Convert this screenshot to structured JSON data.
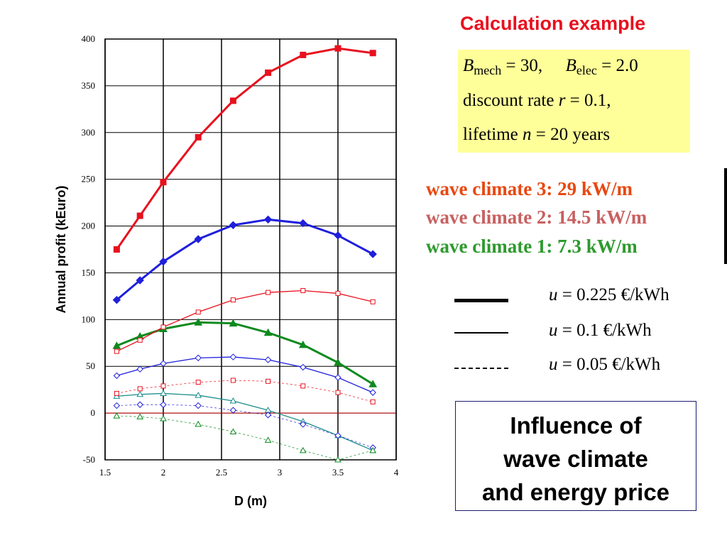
{
  "chart_data": {
    "type": "line",
    "xlabel": "D (m)",
    "ylabel": "Annual profit (kEuro)",
    "xlim": [
      1.5,
      4
    ],
    "ylim": [
      -50,
      400
    ],
    "xticks": [
      "1.5",
      "2",
      "2.5",
      "3",
      "3.5",
      "4"
    ],
    "yticks": [
      "-50",
      "0",
      "50",
      "100",
      "150",
      "200",
      "250",
      "300",
      "350",
      "400"
    ],
    "grid": "on",
    "x": [
      1.6,
      1.8,
      2.0,
      2.3,
      2.6,
      2.9,
      3.2,
      3.5,
      3.8
    ],
    "series": [
      {
        "color": "#e8101e",
        "style": "thick",
        "marker": "square-filled",
        "values": [
          175,
          211,
          247,
          295,
          334,
          364,
          383,
          390,
          385
        ]
      },
      {
        "color": "#1f1fdc",
        "style": "thick",
        "marker": "diamond-filled",
        "values": [
          121,
          142,
          162,
          186,
          201,
          207,
          203,
          190,
          170
        ]
      },
      {
        "color": "#0e8a1e",
        "style": "thick",
        "marker": "triangle-filled",
        "values": [
          72,
          82,
          90,
          97,
          96,
          86,
          73,
          54,
          31
        ]
      },
      {
        "color": "#e8101e",
        "style": "medium",
        "marker": "square-open",
        "values": [
          66,
          78,
          92,
          108,
          121,
          129,
          131,
          128,
          119
        ]
      },
      {
        "color": "#1f1fdc",
        "style": "medium",
        "marker": "diamond-open",
        "values": [
          40,
          47,
          53,
          59,
          60,
          57,
          49,
          38,
          22
        ]
      },
      {
        "color": "#1c8c8c",
        "style": "medium",
        "marker": "triangle-open",
        "values": [
          18,
          20,
          21,
          19,
          13,
          3,
          -9,
          -24,
          -40
        ]
      },
      {
        "color": "#e8101e",
        "style": "dashed",
        "marker": "square-open",
        "values": [
          21,
          26,
          29,
          33,
          35,
          34,
          29,
          22,
          12
        ]
      },
      {
        "color": "#1f1fdc",
        "style": "dashed",
        "marker": "diamond-open",
        "values": [
          8,
          9,
          9,
          8,
          3,
          -2,
          -12,
          -24,
          -37
        ]
      },
      {
        "color": "#0e8a1e",
        "style": "dashed",
        "marker": "triangle-open",
        "values": [
          -3,
          -4,
          -6,
          -12,
          -20,
          -29,
          -40,
          -50,
          -40
        ]
      }
    ]
  },
  "calc": {
    "title": "Calculation example",
    "line1_b": "B",
    "line1_mech": "mech",
    "line1_eq1": " = 30,",
    "line1_b2": "B",
    "line1_elec": "elec",
    "line1_eq2": " = 2.0",
    "line2_text": "discount rate  ",
    "line2_var": "r",
    "line2_val": " = 0.1,",
    "line3_text": "lifetime  ",
    "line3_var": "n",
    "line3_val": " = 20 years"
  },
  "waves": [
    {
      "label": "wave climate 3:  29 kW/m",
      "color": "#e84810"
    },
    {
      "label": "wave climate 2:  14.5 kW/m",
      "color": "#c86060"
    },
    {
      "label": "wave climate 1:  7.3 kW/m",
      "color": "#2e9a2e"
    }
  ],
  "price_legend": [
    {
      "var": "u",
      "text": " = 0.225 €/kWh",
      "style": "thick"
    },
    {
      "var": "u",
      "text": " = 0.1 €/kWh",
      "style": "thin"
    },
    {
      "var": "u",
      "text": " = 0.05 €/kWh",
      "style": "dashed"
    }
  ],
  "influence": {
    "line1": "Influence of",
    "line2": "wave climate",
    "line3": "and energy price"
  }
}
